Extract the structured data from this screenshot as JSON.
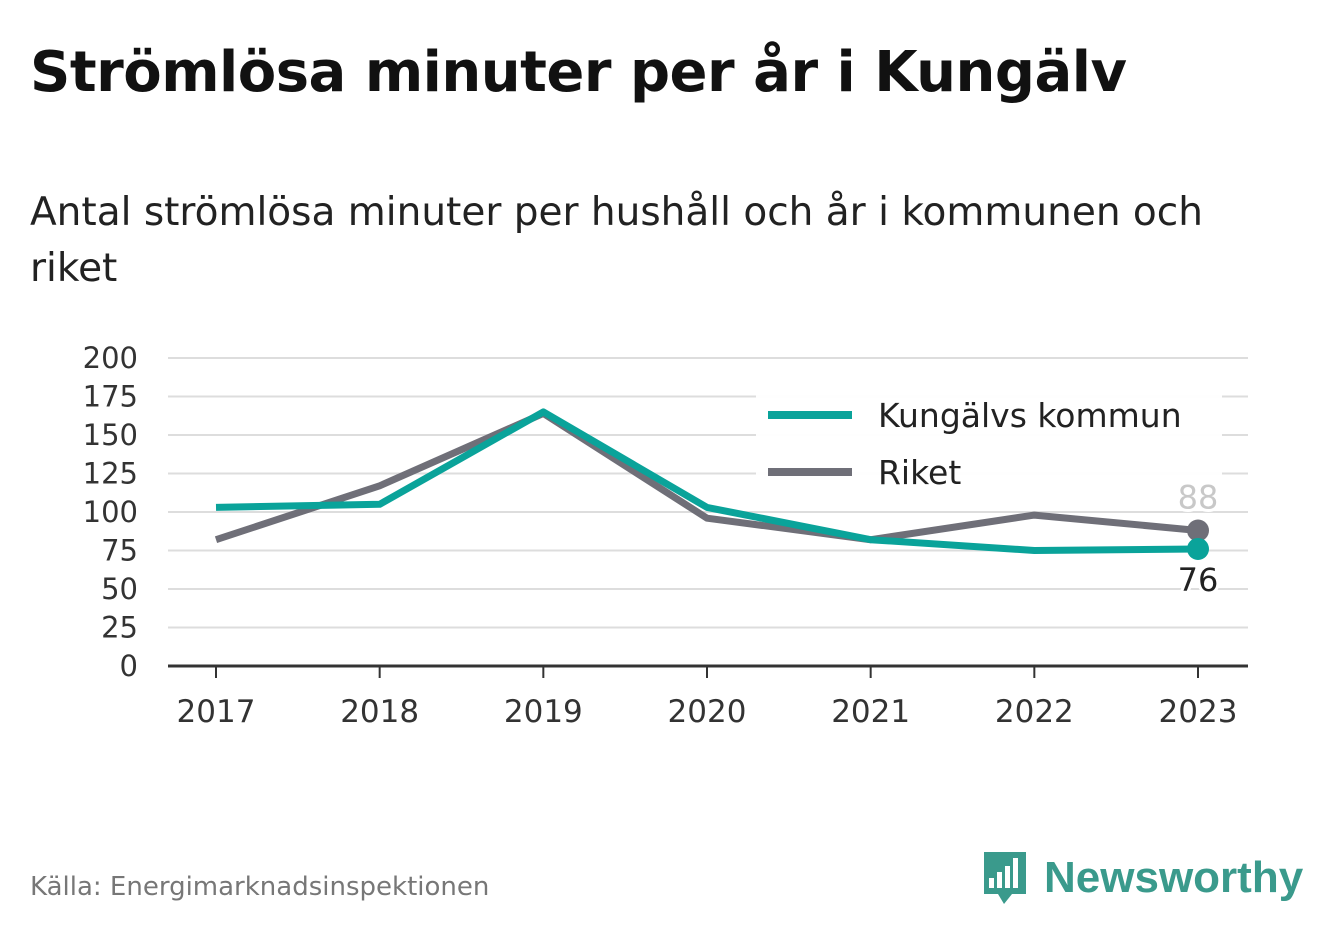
{
  "title": "Strömlösa minuter per år i Kungälv",
  "subtitle": "Antal strömlösa minuter per hushåll och år i kommunen och riket",
  "source": "Källa: Energimarknadsinspektionen",
  "brand": "Newsworthy",
  "colors": {
    "kungalv": "#0aa39a",
    "riket": "#6f6f78",
    "grid": "#dddddd",
    "axis": "#333333",
    "brand": "#3a9a8c"
  },
  "chart_data": {
    "type": "line",
    "x": [
      "2017",
      "2018",
      "2019",
      "2020",
      "2021",
      "2022",
      "2023"
    ],
    "ylim": [
      0,
      200
    ],
    "yticks": [
      0,
      25,
      50,
      75,
      100,
      125,
      150,
      175,
      200
    ],
    "grid": true,
    "legend_position": "top-right",
    "series": [
      {
        "name": "Kungälvs kommun",
        "values": [
          103,
          105,
          165,
          103,
          82,
          75,
          76
        ],
        "end_label": "76"
      },
      {
        "name": "Riket",
        "values": [
          82,
          117,
          164,
          96,
          82,
          98,
          88
        ],
        "end_label": "88"
      }
    ]
  }
}
